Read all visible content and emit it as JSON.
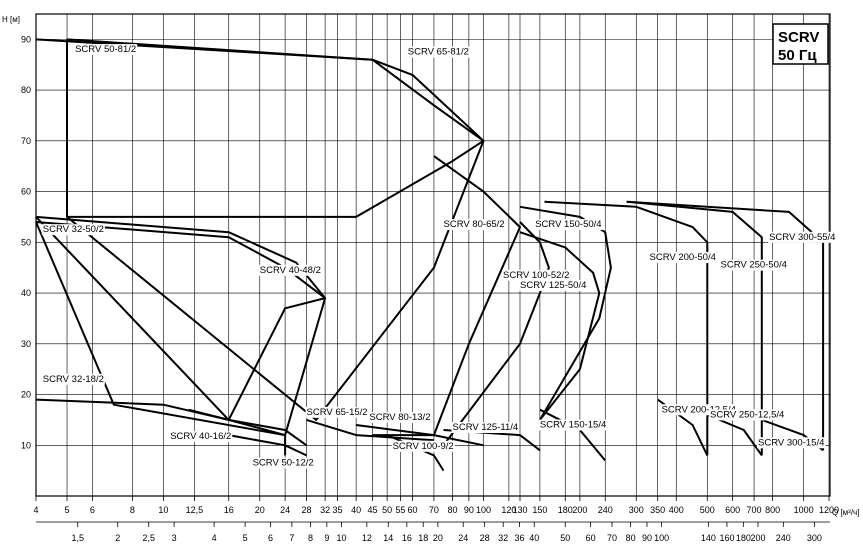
{
  "chart_data": {
    "type": "line",
    "title": "SCRV",
    "subtitle": "50 Гц",
    "ylabel": "H [м]",
    "xlabel": "Q [м³/ч]",
    "ylim": [
      0,
      95
    ],
    "y_ticks": [
      10,
      20,
      30,
      40,
      50,
      60,
      70,
      80,
      90
    ],
    "x_scale": "log",
    "x_ticks_top": [
      "4",
      "5",
      "6",
      "8",
      "10",
      "12,5",
      "16",
      "20",
      "24",
      "28",
      "32",
      "35",
      "40",
      "45",
      "50",
      "55",
      "60",
      "70",
      "80",
      "90",
      "100",
      "120",
      "130",
      "150",
      "180",
      "200",
      "240",
      "300",
      "350",
      "400",
      "500",
      "600",
      "700",
      "800",
      "1000",
      "1200"
    ],
    "x_ticks_bottom": [
      "1,5",
      "2",
      "2,5",
      "3",
      "4",
      "5",
      "6",
      "7",
      "8",
      "9",
      "10",
      "12",
      "14",
      "16",
      "18",
      "20",
      "24",
      "28",
      "32",
      "36",
      "40",
      "50",
      "60",
      "70",
      "80",
      "90",
      "100",
      "140",
      "160",
      "180",
      "200",
      "240",
      "300"
    ],
    "grid": true,
    "series": [
      {
        "name": "SCRV 50-81/2"
      },
      {
        "name": "SCRV 65-81/2"
      },
      {
        "name": "SCRV 32-50/2"
      },
      {
        "name": "SCRV 40-48/2"
      },
      {
        "name": "SCRV 80-65/2"
      },
      {
        "name": "SCRV 150-50/4"
      },
      {
        "name": "SCRV 100-52/2"
      },
      {
        "name": "SCRV 125-50/4"
      },
      {
        "name": "SCRV 200-50/4"
      },
      {
        "name": "SCRV 250-50/4"
      },
      {
        "name": "SCRV 300-55/4"
      },
      {
        "name": "SCRV 32-18/2"
      },
      {
        "name": "SCRV 40-16/2"
      },
      {
        "name": "SCRV 50-12/2"
      },
      {
        "name": "SCRV 65-15/2"
      },
      {
        "name": "SCRV 80-13/2"
      },
      {
        "name": "SCRV 100-9/2"
      },
      {
        "name": "SCRV 125-11/4"
      },
      {
        "name": "SCRV 150-15/4"
      },
      {
        "name": "SCRV 200-12,5/4"
      },
      {
        "name": "SCRV 250-12,5/4"
      },
      {
        "name": "SCRV 300-15/4"
      }
    ]
  }
}
